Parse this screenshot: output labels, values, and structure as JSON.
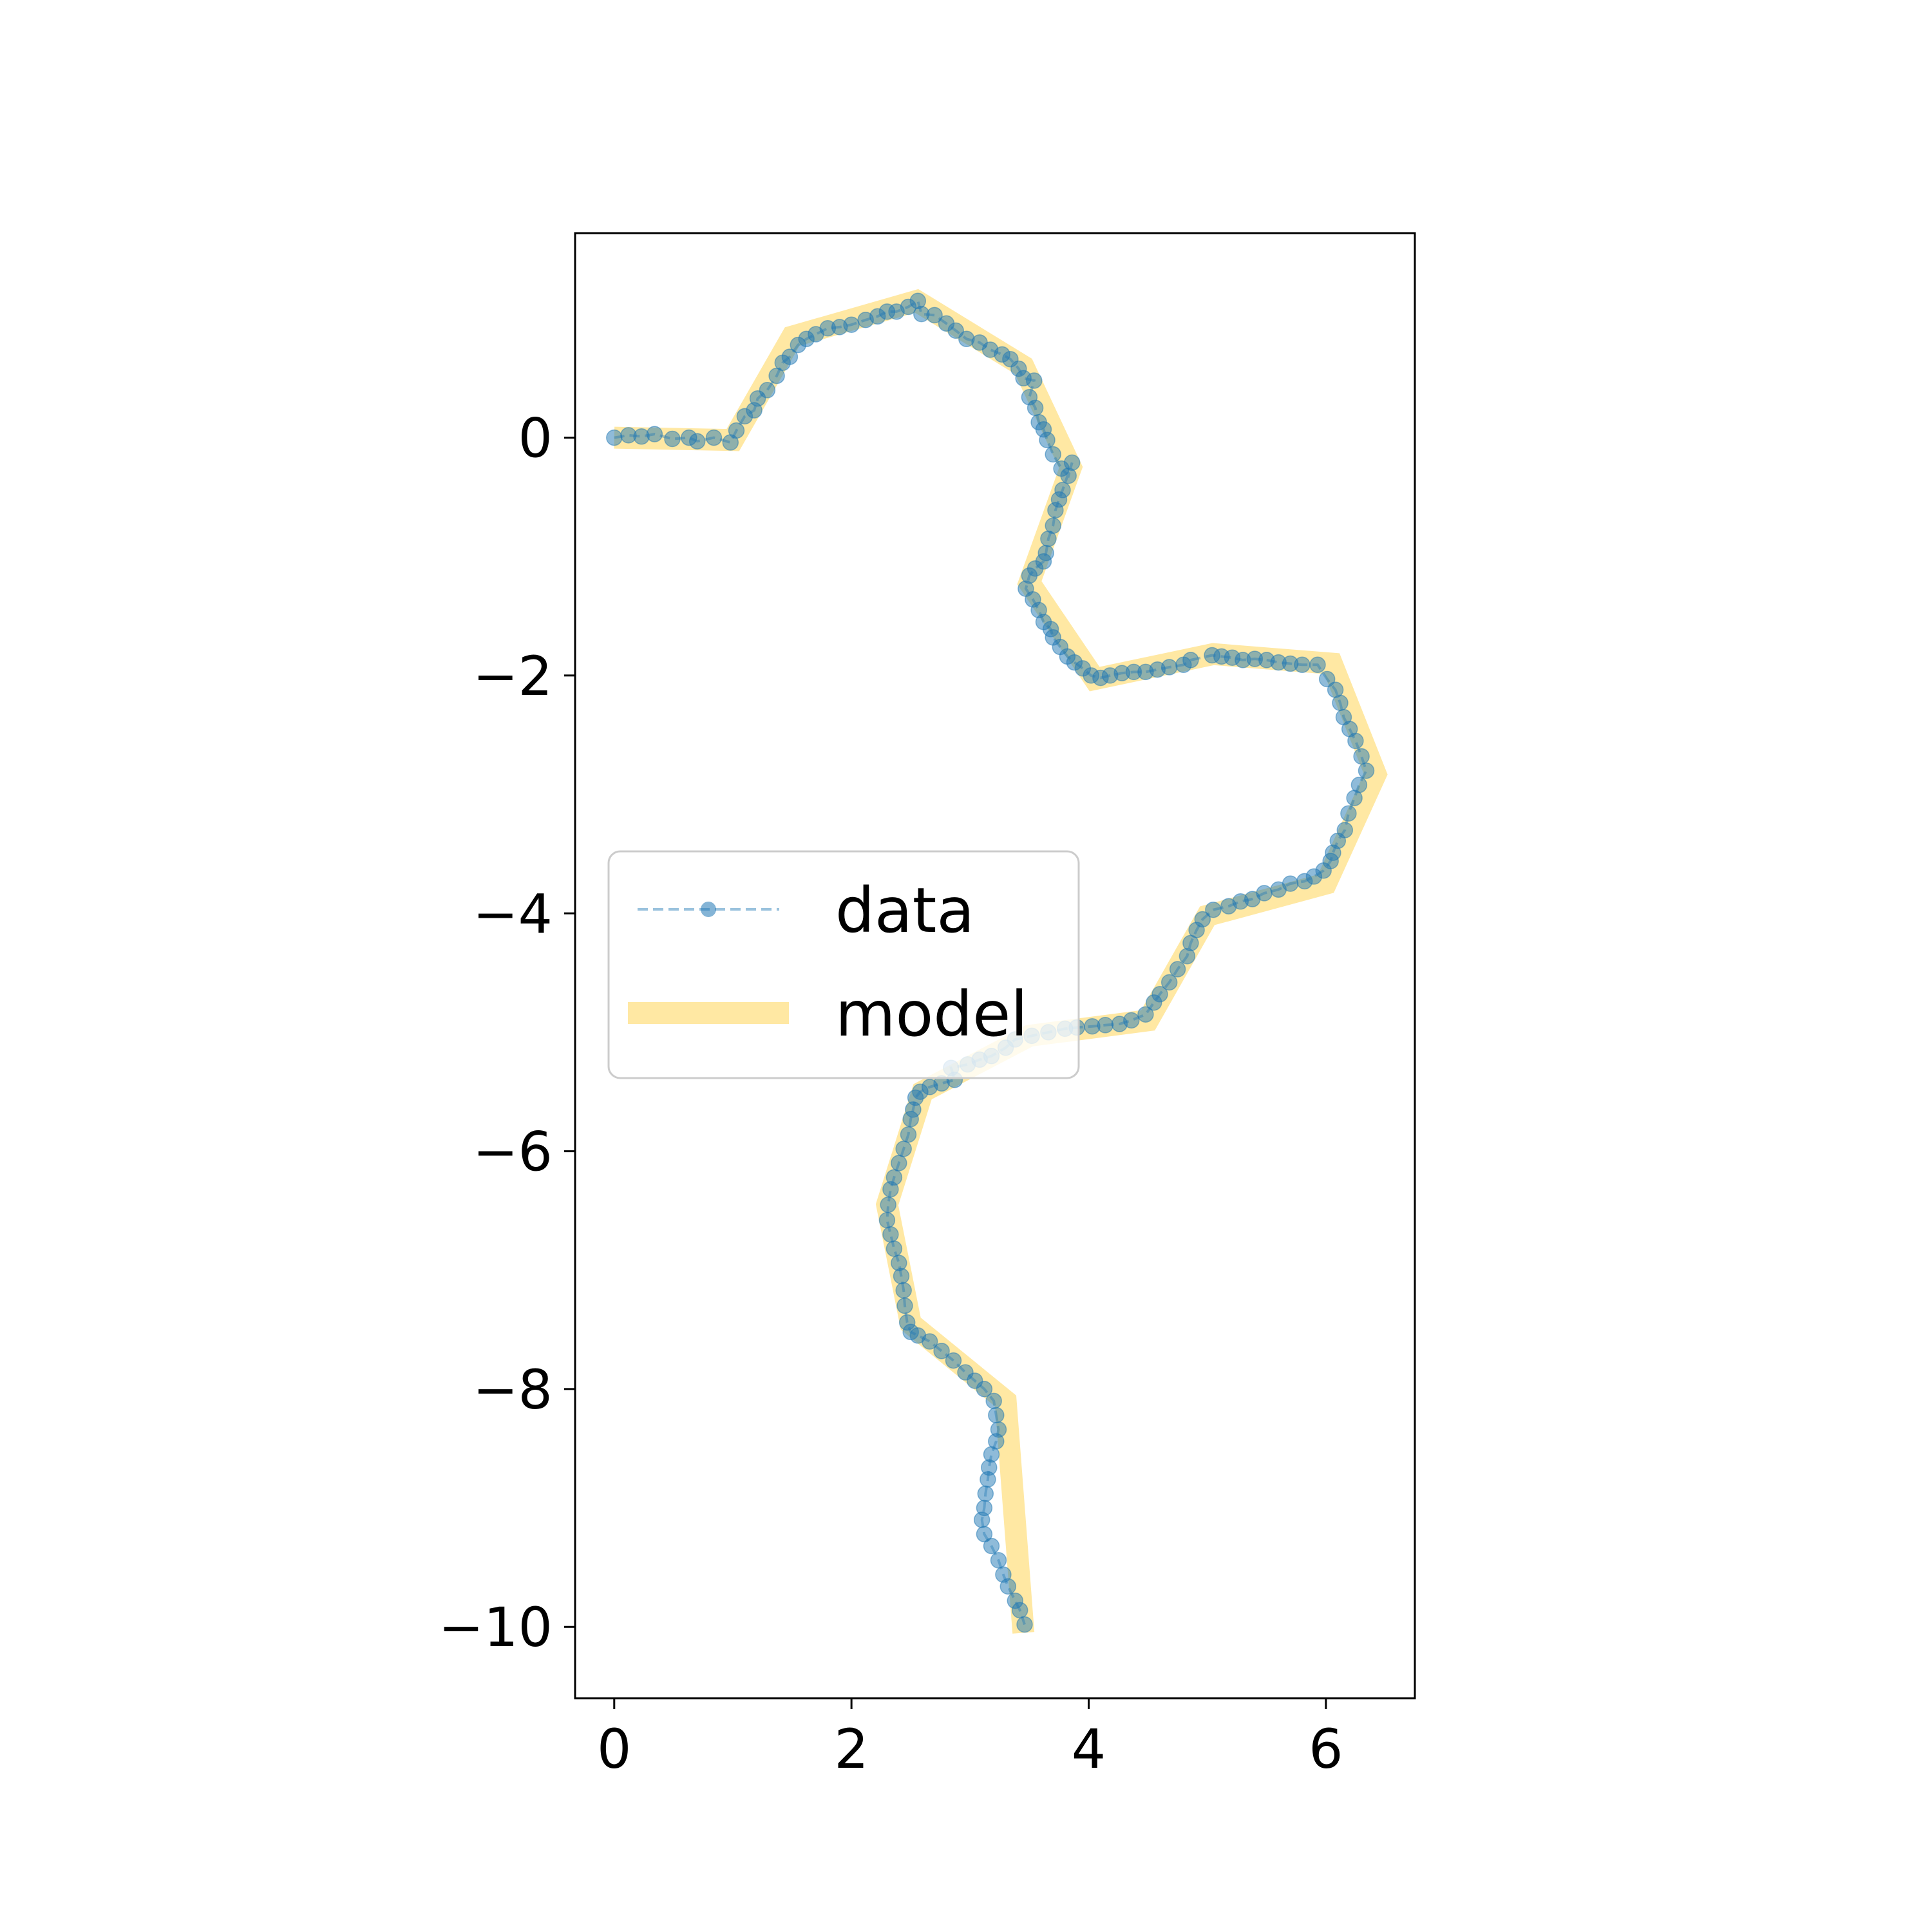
{
  "chart_data": {
    "type": "line",
    "xlim": [
      -0.33,
      6.75
    ],
    "ylim": [
      -10.6,
      1.72
    ],
    "x_ticks": [
      0,
      2,
      4,
      6
    ],
    "y_ticks": [
      0,
      -2,
      -4,
      -6,
      -8,
      -10
    ],
    "grid": false,
    "legend": {
      "placement": "center-left"
    },
    "colors": {
      "data": "#1f77b4",
      "model": "#ffd966"
    },
    "series": [
      {
        "name": "data",
        "style": "dashed line with circle markers",
        "points": [
          [
            0.0,
            0.0
          ],
          [
            0.12,
            0.02
          ],
          [
            0.23,
            0.01
          ],
          [
            0.34,
            0.03
          ],
          [
            0.49,
            -0.01
          ],
          [
            0.63,
            0.0
          ],
          [
            0.7,
            -0.03
          ],
          [
            0.84,
            0.0
          ],
          [
            0.98,
            -0.04
          ],
          [
            1.03,
            0.06
          ],
          [
            1.1,
            0.18
          ],
          [
            1.18,
            0.23
          ],
          [
            1.21,
            0.33
          ],
          [
            1.29,
            0.4
          ],
          [
            1.37,
            0.52
          ],
          [
            1.42,
            0.63
          ],
          [
            1.48,
            0.68
          ],
          [
            1.55,
            0.78
          ],
          [
            1.62,
            0.83
          ],
          [
            1.7,
            0.87
          ],
          [
            1.8,
            0.92
          ],
          [
            1.9,
            0.93
          ],
          [
            2.0,
            0.95
          ],
          [
            2.12,
            0.99
          ],
          [
            2.22,
            1.02
          ],
          [
            2.3,
            1.06
          ],
          [
            2.38,
            1.06
          ],
          [
            2.48,
            1.1
          ],
          [
            2.56,
            1.15
          ],
          [
            2.59,
            1.04
          ],
          [
            2.7,
            1.03
          ],
          [
            2.8,
            0.96
          ],
          [
            2.88,
            0.9
          ],
          [
            2.97,
            0.83
          ],
          [
            3.08,
            0.8
          ],
          [
            3.17,
            0.74
          ],
          [
            3.27,
            0.7
          ],
          [
            3.34,
            0.66
          ],
          [
            3.41,
            0.58
          ],
          [
            3.45,
            0.5
          ],
          [
            3.54,
            0.48
          ],
          [
            3.5,
            0.34
          ],
          [
            3.55,
            0.25
          ],
          [
            3.58,
            0.13
          ],
          [
            3.62,
            0.07
          ],
          [
            3.65,
            -0.02
          ],
          [
            3.7,
            -0.14
          ],
          [
            3.77,
            -0.26
          ],
          [
            3.83,
            -0.32
          ],
          [
            3.86,
            -0.21
          ],
          [
            3.78,
            -0.44
          ],
          [
            3.75,
            -0.52
          ],
          [
            3.72,
            -0.61
          ],
          [
            3.7,
            -0.74
          ],
          [
            3.66,
            -0.85
          ],
          [
            3.64,
            -0.97
          ],
          [
            3.62,
            -1.04
          ],
          [
            3.55,
            -1.1
          ],
          [
            3.5,
            -1.16
          ],
          [
            3.47,
            -1.27
          ],
          [
            3.53,
            -1.36
          ],
          [
            3.58,
            -1.45
          ],
          [
            3.62,
            -1.55
          ],
          [
            3.68,
            -1.61
          ],
          [
            3.7,
            -1.68
          ],
          [
            3.76,
            -1.76
          ],
          [
            3.82,
            -1.84
          ],
          [
            3.88,
            -1.89
          ],
          [
            3.95,
            -1.94
          ],
          [
            4.02,
            -2.0
          ],
          [
            4.1,
            -2.02
          ],
          [
            4.18,
            -2.0
          ],
          [
            4.28,
            -1.98
          ],
          [
            4.38,
            -1.97
          ],
          [
            4.48,
            -1.97
          ],
          [
            4.58,
            -1.95
          ],
          [
            4.68,
            -1.93
          ],
          [
            4.8,
            -1.91
          ],
          [
            4.86,
            -1.87
          ],
          [
            5.04,
            -1.83
          ],
          [
            5.12,
            -1.84
          ],
          [
            5.21,
            -1.85
          ],
          [
            5.3,
            -1.87
          ],
          [
            5.4,
            -1.86
          ],
          [
            5.5,
            -1.87
          ],
          [
            5.6,
            -1.89
          ],
          [
            5.7,
            -1.9
          ],
          [
            5.8,
            -1.91
          ],
          [
            5.93,
            -1.91
          ],
          [
            6.01,
            -2.03
          ],
          [
            6.08,
            -2.12
          ],
          [
            6.12,
            -2.23
          ],
          [
            6.15,
            -2.35
          ],
          [
            6.2,
            -2.45
          ],
          [
            6.25,
            -2.55
          ],
          [
            6.3,
            -2.68
          ],
          [
            6.34,
            -2.8
          ],
          [
            6.28,
            -2.92
          ],
          [
            6.24,
            -3.03
          ],
          [
            6.19,
            -3.16
          ],
          [
            6.16,
            -3.3
          ],
          [
            6.1,
            -3.39
          ],
          [
            6.06,
            -3.49
          ],
          [
            6.04,
            -3.56
          ],
          [
            5.98,
            -3.64
          ],
          [
            5.9,
            -3.69
          ],
          [
            5.82,
            -3.73
          ],
          [
            5.7,
            -3.75
          ],
          [
            5.6,
            -3.8
          ],
          [
            5.48,
            -3.83
          ],
          [
            5.38,
            -3.88
          ],
          [
            5.28,
            -3.9
          ],
          [
            5.18,
            -3.94
          ],
          [
            5.05,
            -3.97
          ],
          [
            4.96,
            -4.05
          ],
          [
            4.91,
            -4.14
          ],
          [
            4.86,
            -4.25
          ],
          [
            4.83,
            -4.36
          ],
          [
            4.75,
            -4.47
          ],
          [
            4.68,
            -4.58
          ],
          [
            4.6,
            -4.68
          ],
          [
            4.55,
            -4.75
          ],
          [
            4.48,
            -4.85
          ],
          [
            4.36,
            -4.9
          ],
          [
            4.26,
            -4.93
          ],
          [
            4.14,
            -4.94
          ],
          [
            4.03,
            -4.95
          ],
          [
            3.9,
            -4.96
          ],
          [
            3.8,
            -4.97
          ],
          [
            3.66,
            -5.0
          ],
          [
            3.52,
            -5.03
          ],
          [
            3.38,
            -5.06
          ],
          [
            3.3,
            -5.13
          ],
          [
            3.18,
            -5.2
          ],
          [
            3.08,
            -5.23
          ],
          [
            2.98,
            -5.27
          ],
          [
            2.84,
            -5.3
          ],
          [
            2.87,
            -5.4
          ],
          [
            2.76,
            -5.43
          ],
          [
            2.66,
            -5.46
          ],
          [
            2.58,
            -5.5
          ],
          [
            2.54,
            -5.55
          ],
          [
            2.52,
            -5.65
          ],
          [
            2.5,
            -5.73
          ],
          [
            2.48,
            -5.86
          ],
          [
            2.44,
            -5.98
          ],
          [
            2.4,
            -6.1
          ],
          [
            2.36,
            -6.22
          ],
          [
            2.33,
            -6.32
          ],
          [
            2.31,
            -6.45
          ],
          [
            2.3,
            -6.58
          ],
          [
            2.33,
            -6.7
          ],
          [
            2.36,
            -6.82
          ],
          [
            2.4,
            -6.94
          ],
          [
            2.42,
            -7.05
          ],
          [
            2.44,
            -7.17
          ],
          [
            2.45,
            -7.3
          ],
          [
            2.47,
            -7.44
          ],
          [
            2.5,
            -7.52
          ],
          [
            2.56,
            -7.55
          ],
          [
            2.66,
            -7.6
          ],
          [
            2.76,
            -7.68
          ],
          [
            2.86,
            -7.76
          ],
          [
            2.96,
            -7.86
          ],
          [
            3.04,
            -7.93
          ],
          [
            3.12,
            -8.0
          ],
          [
            3.2,
            -8.1
          ],
          [
            3.22,
            -8.22
          ],
          [
            3.24,
            -8.34
          ],
          [
            3.22,
            -8.44
          ],
          [
            3.18,
            -8.55
          ],
          [
            3.16,
            -8.66
          ],
          [
            3.15,
            -8.76
          ],
          [
            3.13,
            -8.88
          ],
          [
            3.12,
            -9.0
          ],
          [
            3.1,
            -9.1
          ],
          [
            3.12,
            -9.22
          ],
          [
            3.18,
            -9.32
          ],
          [
            3.24,
            -9.44
          ],
          [
            3.28,
            -9.56
          ],
          [
            3.32,
            -9.66
          ],
          [
            3.38,
            -9.78
          ],
          [
            3.42,
            -9.86
          ],
          [
            3.46,
            -9.98
          ]
        ]
      },
      {
        "name": "model",
        "style": "thick semi-transparent line",
        "points": [
          [
            0.0,
            0.0
          ],
          [
            1.0,
            -0.02
          ],
          [
            1.5,
            0.85
          ],
          [
            2.55,
            1.15
          ],
          [
            3.45,
            0.6
          ],
          [
            3.85,
            -0.25
          ],
          [
            3.5,
            -1.22
          ],
          [
            4.05,
            -2.03
          ],
          [
            5.05,
            -1.82
          ],
          [
            6.05,
            -1.9
          ],
          [
            6.42,
            -2.83
          ],
          [
            6.0,
            -3.75
          ],
          [
            5.0,
            -4.02
          ],
          [
            4.5,
            -4.9
          ],
          [
            3.5,
            -5.03
          ],
          [
            2.6,
            -5.5
          ],
          [
            2.3,
            -6.45
          ],
          [
            2.5,
            -7.45
          ],
          [
            3.3,
            -8.1
          ],
          [
            3.45,
            -10.05
          ]
        ]
      }
    ]
  }
}
